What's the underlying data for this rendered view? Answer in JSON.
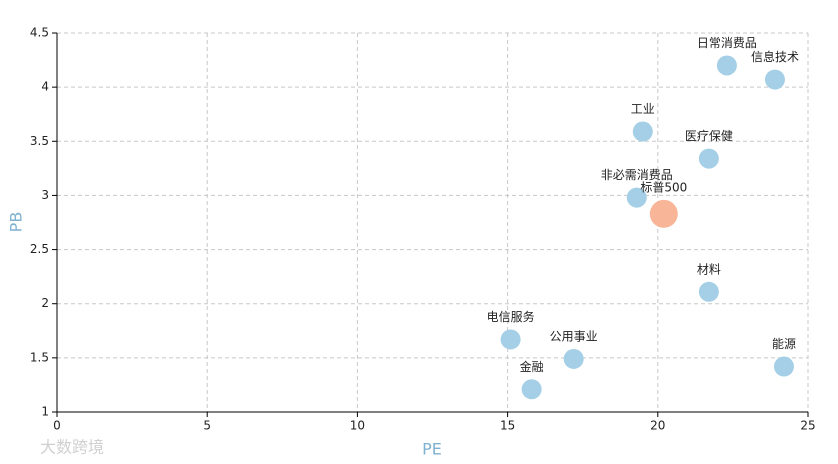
{
  "chart_data": {
    "type": "scatter",
    "xlabel": "PE",
    "ylabel": "PB",
    "xlim": [
      0,
      25
    ],
    "xticks": [
      0,
      5,
      10,
      15,
      20,
      25
    ],
    "ylim": [
      1,
      4.5
    ],
    "yticks": [
      1,
      1.5,
      2,
      2.5,
      3,
      3.5,
      4,
      4.5
    ],
    "grid": true,
    "points": [
      {
        "label": "日常消费品",
        "x": 22.3,
        "y": 4.2,
        "color": "#a4cfe6"
      },
      {
        "label": "信息技术",
        "x": 23.9,
        "y": 4.07,
        "color": "#a4cfe6"
      },
      {
        "label": "工业",
        "x": 19.5,
        "y": 3.59,
        "color": "#a4cfe6"
      },
      {
        "label": "医疗保健",
        "x": 21.7,
        "y": 3.34,
        "color": "#a4cfe6"
      },
      {
        "label": "非必需消费品",
        "x": 19.3,
        "y": 2.98,
        "color": "#a4cfe6"
      },
      {
        "label": "标普500",
        "x": 20.2,
        "y": 2.83,
        "color": "#f8b598",
        "highlight": true
      },
      {
        "label": "材料",
        "x": 21.7,
        "y": 2.11,
        "color": "#a4cfe6"
      },
      {
        "label": "电信服务",
        "x": 15.1,
        "y": 1.67,
        "color": "#a4cfe6"
      },
      {
        "label": "公用事业",
        "x": 17.2,
        "y": 1.49,
        "color": "#a4cfe6"
      },
      {
        "label": "金融",
        "x": 15.8,
        "y": 1.21,
        "color": "#a4cfe6"
      },
      {
        "label": "能源",
        "x": 24.2,
        "y": 1.42,
        "color": "#a4cfe6"
      }
    ],
    "watermark": "大数跨境"
  }
}
